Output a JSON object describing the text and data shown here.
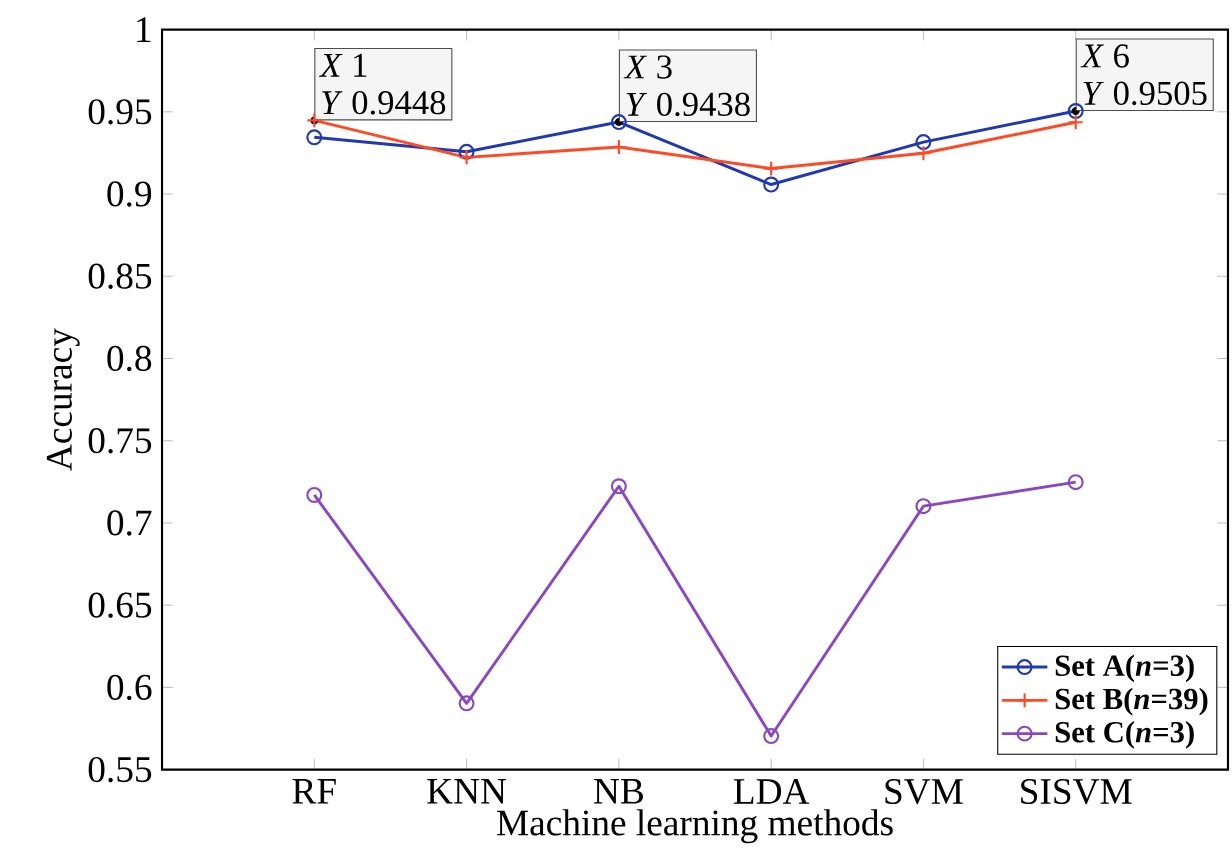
{
  "chart_data": {
    "type": "line",
    "xlabel": "Machine learning methods",
    "ylabel": "Accuracy",
    "categories": [
      "RF",
      "KNN",
      "NB",
      "LDA",
      "SVM",
      "SISVM"
    ],
    "series": [
      {
        "name": "Set A(*n*=3)",
        "color": "#2038b0",
        "marker": "circle",
        "values": [
          0.9345,
          0.9257,
          0.9438,
          0.9058,
          0.9316,
          0.9505
        ]
      },
      {
        "name": "Set B(*n*=39)",
        "color": "#ff4a26",
        "marker": "cross",
        "values": [
          0.9448,
          0.9223,
          0.9286,
          0.9155,
          0.9248,
          0.9437
        ]
      },
      {
        "name": "Set C(*n*=3)",
        "color": "#8a48c0",
        "marker": "circle",
        "values": [
          0.717,
          0.5903,
          0.7223,
          0.5704,
          0.7102,
          0.7248
        ]
      }
    ],
    "ylim": [
      0.55,
      1
    ],
    "yticks": [
      0.55,
      0.6,
      0.65,
      0.7,
      0.75,
      0.8,
      0.85,
      0.9,
      0.95,
      1
    ],
    "grid": false,
    "legend": "bottom right",
    "line_style": "solid",
    "annotations": [
      {
        "text": "*X* 1",
        "x": "RF",
        "y": 0.9448
      },
      {
        "text": "*Y* 0.9448",
        "x": "RF",
        "y": 0.9448
      },
      {
        "text": "*X* 3",
        "x": "NB",
        "y": 0.9438
      },
      {
        "text": "*Y* 0.9438",
        "x": "NB",
        "y": 0.9438
      },
      {
        "text": "*X* 6",
        "x": "SISVM",
        "y": 0.9505
      },
      {
        "text": "*Y* 0.9505",
        "x": "SISVM",
        "y": 0.9505
      }
    ]
  }
}
